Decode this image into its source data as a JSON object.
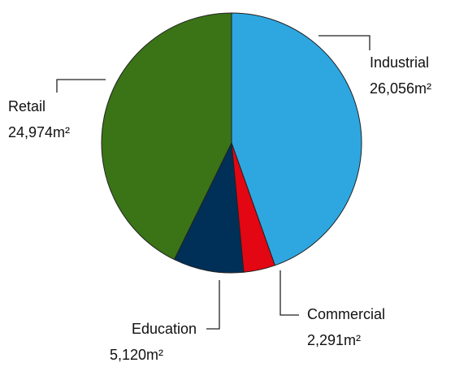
{
  "chart_data": {
    "type": "pie",
    "categories": [
      "Industrial",
      "Commercial",
      "Education",
      "Retail"
    ],
    "values": [
      26056,
      2291,
      5120,
      24974
    ],
    "value_labels": [
      "26,056m²",
      "2,291m²",
      "5,120m²",
      "24,974m²"
    ],
    "colors": [
      "#2ea7e0",
      "#e30613",
      "#003057",
      "#3a7417"
    ]
  }
}
